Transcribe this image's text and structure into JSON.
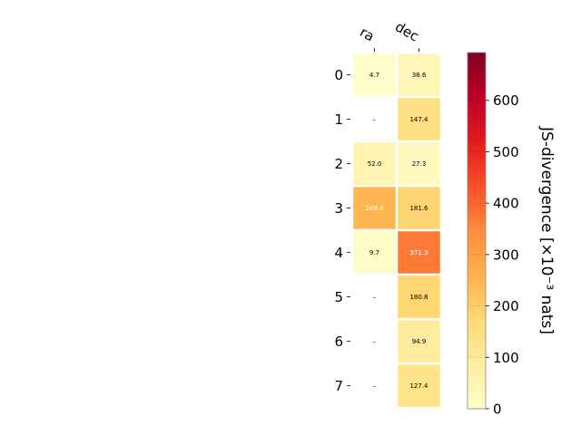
{
  "chart_data": {
    "type": "heatmap",
    "columns": [
      "ra",
      "dec"
    ],
    "rows": [
      "0",
      "1",
      "2",
      "3",
      "4",
      "5",
      "6",
      "7"
    ],
    "values": [
      [
        4.7,
        38.6
      ],
      [
        null,
        147.4
      ],
      [
        52.0,
        27.3
      ],
      [
        249.0,
        181.6
      ],
      [
        9.7,
        371.3
      ],
      [
        null,
        180.8
      ],
      [
        null,
        94.9
      ],
      [
        null,
        127.4
      ]
    ],
    "cell_labels": [
      [
        "4.7",
        "38.6"
      ],
      [
        "–",
        "147.4"
      ],
      [
        "52.0",
        "27.3"
      ],
      [
        "249.0",
        "181.6"
      ],
      [
        "9.7",
        "371.3"
      ],
      [
        "–",
        "180.8"
      ],
      [
        "–",
        "94.9"
      ],
      [
        "–",
        "127.4"
      ]
    ],
    "colorbar": {
      "label": "JS-divergence [×10⁻³ nats]",
      "ticks": [
        "0",
        "100",
        "200",
        "300",
        "400",
        "500",
        "600"
      ],
      "tick_values": [
        0,
        100,
        200,
        300,
        400,
        500,
        600
      ],
      "vmin": 0,
      "vmax": 693,
      "colormap": "YlOrRd"
    },
    "grid": false
  },
  "colors": {
    "missing_cell": "#ffffff",
    "cell_border": "#ffffff",
    "text_dark": "#000000",
    "text_light": "#ffffff"
  }
}
